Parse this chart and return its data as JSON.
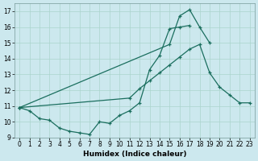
{
  "xlabel": "Humidex (Indice chaleur)",
  "bg_color": "#cce8ee",
  "grid_color": "#aad4cc",
  "line_color": "#1a6e5e",
  "xlim": [
    -0.5,
    23.5
  ],
  "ylim": [
    9,
    17.5
  ],
  "xticks": [
    0,
    1,
    2,
    3,
    4,
    5,
    6,
    7,
    8,
    9,
    10,
    11,
    12,
    13,
    14,
    15,
    16,
    17,
    18,
    19,
    20,
    21,
    22,
    23
  ],
  "yticks": [
    9,
    10,
    11,
    12,
    13,
    14,
    15,
    16,
    17
  ],
  "line1_x": [
    0,
    1,
    2,
    3,
    4,
    5,
    6,
    7,
    8,
    9,
    10,
    11,
    12,
    13,
    14,
    15,
    16,
    17
  ],
  "line1_y": [
    10.9,
    10.7,
    10.2,
    10.1,
    9.6,
    9.4,
    9.3,
    9.2,
    10.0,
    9.9,
    10.4,
    10.7,
    11.2,
    13.3,
    14.2,
    15.9,
    16.0,
    16.1
  ],
  "line2_x": [
    0,
    15,
    16,
    17,
    18,
    19
  ],
  "line2_y": [
    10.9,
    14.9,
    16.7,
    17.1,
    16.0,
    15.0
  ],
  "line3_x": [
    0,
    11,
    12,
    13,
    14,
    15,
    16,
    17,
    18,
    19,
    20,
    21,
    22,
    23
  ],
  "line3_y": [
    10.9,
    11.5,
    12.1,
    12.6,
    13.1,
    13.6,
    14.1,
    14.6,
    14.9,
    13.1,
    12.2,
    11.7,
    11.2,
    11.2
  ]
}
